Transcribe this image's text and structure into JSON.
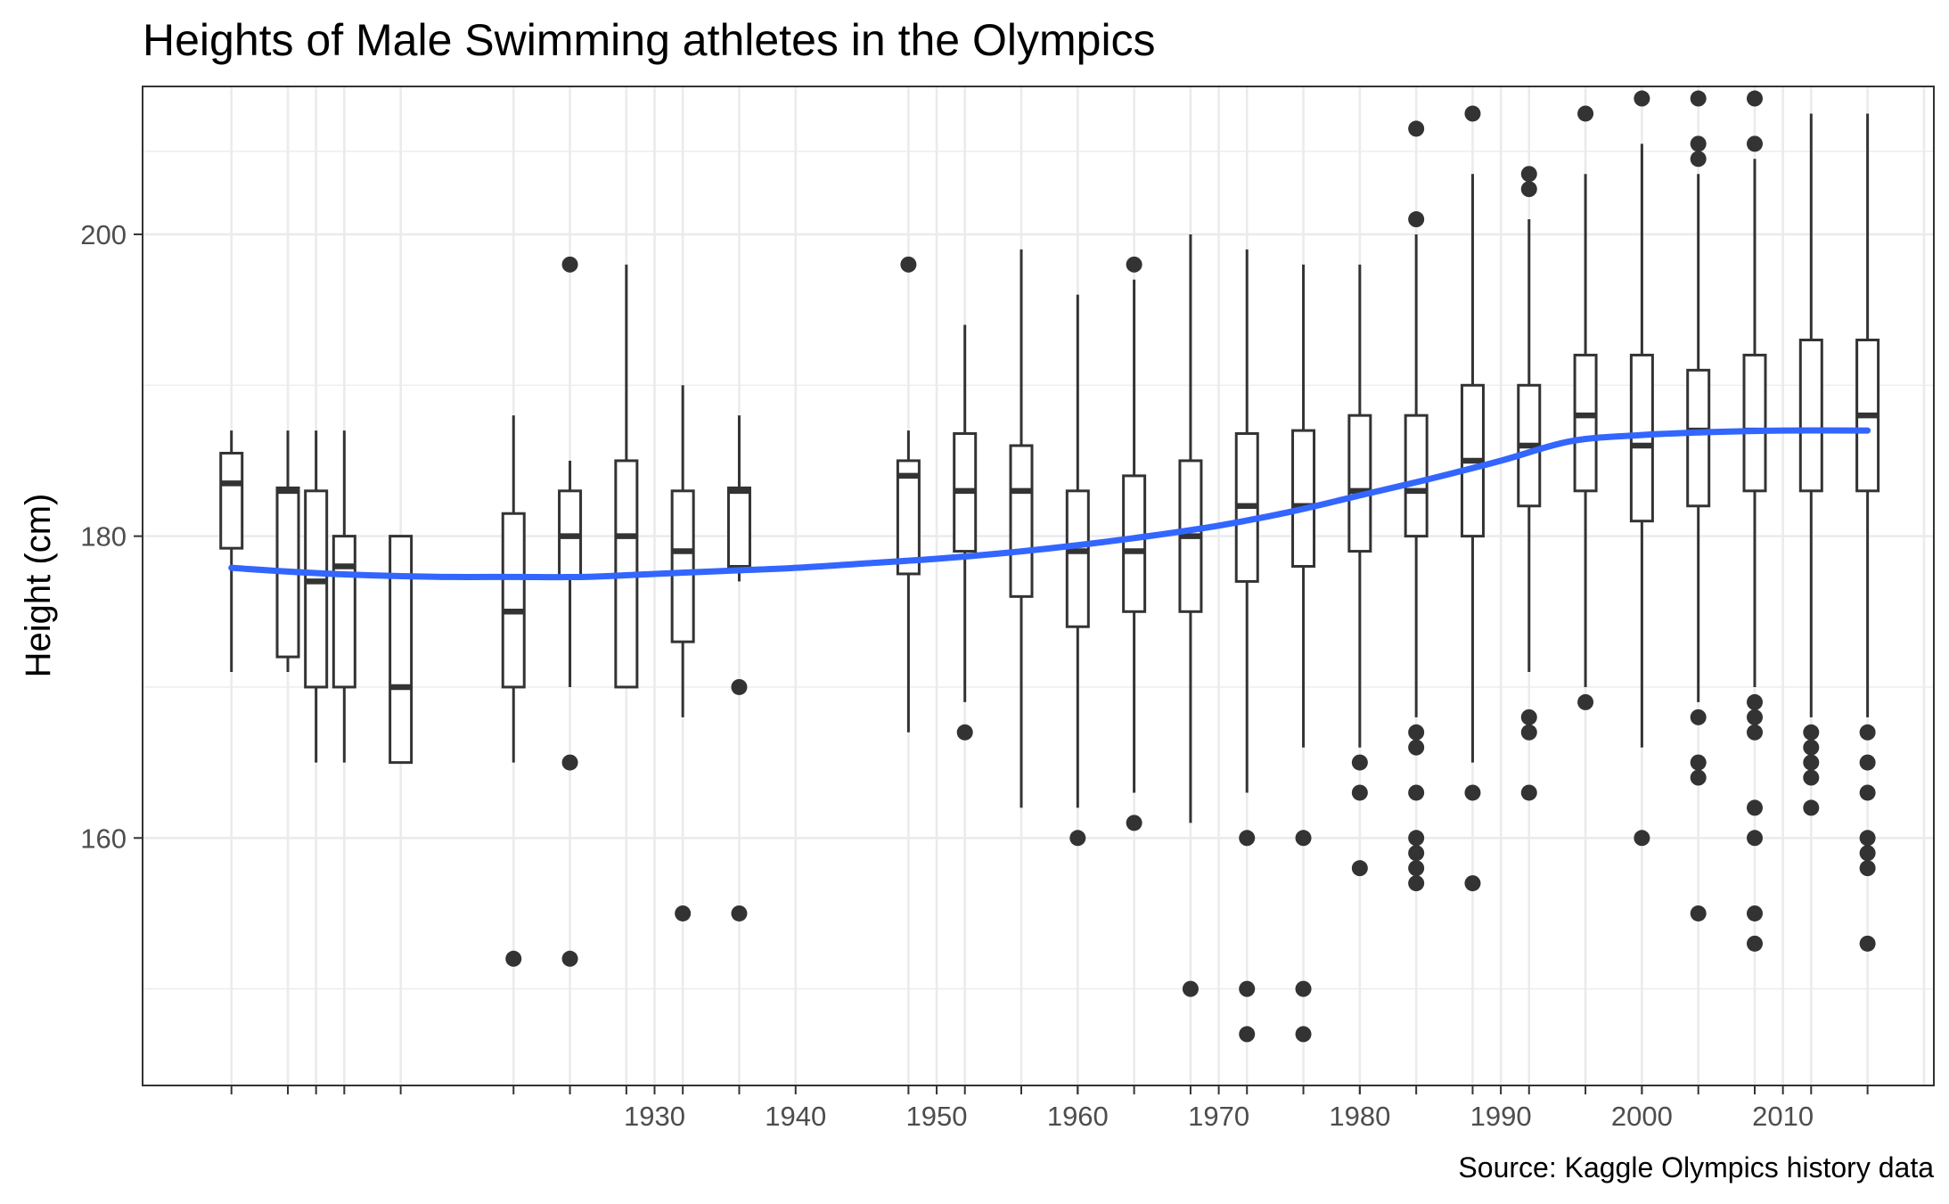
{
  "chart_data": {
    "type": "boxplot",
    "title": "Heights of Male Swimming athletes in the Olympics",
    "xlabel": "",
    "ylabel": "Height (cm)",
    "caption": "Source: Kaggle Olympics history data",
    "xlim": [
      1893.7,
      2020.7
    ],
    "ylim": [
      143.6,
      209.8
    ],
    "x_major_ticks": [
      1930,
      1940,
      1950,
      1960,
      1970,
      1980,
      1990,
      2000,
      2010
    ],
    "x_minor_ticks": [
      1900,
      1904,
      1906,
      1908,
      1912,
      1920,
      1924,
      1928,
      1932,
      1936,
      1948,
      1952,
      1956,
      1960,
      1964,
      1968,
      1972,
      1976,
      1980,
      1984,
      1988,
      1992,
      1996,
      2000,
      2004,
      2008,
      2012,
      2016
    ],
    "x_gridlines": [
      1900,
      1904,
      1906,
      1908,
      1912,
      1920,
      1924,
      1928,
      1930,
      1932,
      1936,
      1940,
      1948,
      1950,
      1952,
      1956,
      1960,
      1964,
      1968,
      1970,
      1972,
      1976,
      1980,
      1984,
      1988,
      1990,
      1992,
      1996,
      2000,
      2004,
      2008,
      2010,
      2012,
      2016,
      2020
    ],
    "y_major_ticks": [
      160,
      180,
      200
    ],
    "y_minor_ticks": [
      150,
      170,
      190
    ],
    "grid": true,
    "boxes": [
      {
        "year": 1900,
        "low": 171,
        "q1": 179.2,
        "median": 183.5,
        "q3": 185.5,
        "high": 187,
        "outliers": []
      },
      {
        "year": 1904,
        "low": 171,
        "q1": 172,
        "median": 183,
        "q3": 183.2,
        "high": 187,
        "outliers": []
      },
      {
        "year": 1906,
        "low": 165,
        "q1": 170,
        "median": 177,
        "q3": 183,
        "high": 187,
        "outliers": []
      },
      {
        "year": 1908,
        "low": 165,
        "q1": 170,
        "median": 178,
        "q3": 180,
        "high": 187,
        "outliers": []
      },
      {
        "year": 1912,
        "low": 165,
        "q1": 165,
        "median": 170,
        "q3": 180,
        "high": 180,
        "outliers": []
      },
      {
        "year": 1920,
        "low": 165,
        "q1": 170,
        "median": 175,
        "q3": 181.5,
        "high": 188,
        "outliers": [
          152
        ]
      },
      {
        "year": 1924,
        "low": 170,
        "q1": 177.3,
        "median": 180,
        "q3": 183,
        "high": 185,
        "outliers": [
          198,
          165,
          152
        ]
      },
      {
        "year": 1928,
        "low": 170,
        "q1": 170,
        "median": 180,
        "q3": 185,
        "high": 198,
        "outliers": []
      },
      {
        "year": 1932,
        "low": 168,
        "q1": 173,
        "median": 179,
        "q3": 183,
        "high": 190,
        "outliers": [
          155
        ]
      },
      {
        "year": 1936,
        "low": 177,
        "q1": 178,
        "median": 183,
        "q3": 183.2,
        "high": 188,
        "outliers": [
          170,
          155
        ]
      },
      {
        "year": 1948,
        "low": 167,
        "q1": 177.5,
        "median": 184,
        "q3": 185,
        "high": 187,
        "outliers": [
          198
        ]
      },
      {
        "year": 1952,
        "low": 169,
        "q1": 179,
        "median": 183,
        "q3": 186.8,
        "high": 194,
        "outliers": [
          167
        ]
      },
      {
        "year": 1956,
        "low": 162,
        "q1": 176,
        "median": 183,
        "q3": 186,
        "high": 199,
        "outliers": []
      },
      {
        "year": 1960,
        "low": 162,
        "q1": 174,
        "median": 179,
        "q3": 183,
        "high": 196,
        "outliers": [
          160
        ]
      },
      {
        "year": 1964,
        "low": 163,
        "q1": 175,
        "median": 179,
        "q3": 184,
        "high": 197,
        "outliers": [
          198,
          161
        ]
      },
      {
        "year": 1968,
        "low": 161,
        "q1": 175,
        "median": 180,
        "q3": 185,
        "high": 200,
        "outliers": [
          150
        ]
      },
      {
        "year": 1972,
        "low": 163,
        "q1": 177,
        "median": 182,
        "q3": 186.8,
        "high": 199,
        "outliers": [
          160,
          150,
          147
        ]
      },
      {
        "year": 1976,
        "low": 166,
        "q1": 178,
        "median": 182,
        "q3": 187,
        "high": 198,
        "outliers": [
          160,
          150,
          147
        ]
      },
      {
        "year": 1980,
        "low": 166,
        "q1": 179,
        "median": 183,
        "q3": 188,
        "high": 198,
        "outliers": [
          165,
          163,
          158
        ]
      },
      {
        "year": 1984,
        "low": 168,
        "q1": 180,
        "median": 183,
        "q3": 188,
        "high": 200,
        "outliers": [
          207,
          201,
          167,
          166,
          163,
          160,
          159,
          158,
          157
        ]
      },
      {
        "year": 1988,
        "low": 165,
        "q1": 180,
        "median": 185,
        "q3": 190,
        "high": 204,
        "outliers": [
          208,
          163,
          157
        ]
      },
      {
        "year": 1992,
        "low": 171,
        "q1": 182,
        "median": 186,
        "q3": 190,
        "high": 201,
        "outliers": [
          204,
          203,
          168,
          167,
          163
        ]
      },
      {
        "year": 1996,
        "low": 170,
        "q1": 183,
        "median": 188,
        "q3": 192,
        "high": 204,
        "outliers": [
          208,
          169
        ]
      },
      {
        "year": 2000,
        "low": 166,
        "q1": 181,
        "median": 186,
        "q3": 192,
        "high": 206,
        "outliers": [
          209,
          160
        ]
      },
      {
        "year": 2004,
        "low": 169,
        "q1": 182,
        "median": 187,
        "q3": 191,
        "high": 204,
        "outliers": [
          209,
          206,
          205,
          168,
          165,
          164,
          155
        ]
      },
      {
        "year": 2008,
        "low": 170,
        "q1": 183,
        "median": 187,
        "q3": 192,
        "high": 205,
        "outliers": [
          209,
          206,
          169,
          168,
          167,
          162,
          160,
          155,
          153
        ]
      },
      {
        "year": 2012,
        "low": 168,
        "q1": 183,
        "median": 187,
        "q3": 193,
        "high": 208,
        "outliers": [
          167,
          166,
          165,
          164,
          162
        ]
      },
      {
        "year": 2016,
        "low": 168,
        "q1": 183,
        "median": 188,
        "q3": 193,
        "high": 208,
        "outliers": [
          167,
          165,
          163,
          160,
          159,
          158,
          153
        ]
      }
    ],
    "smooth": {
      "color": "#3366ff",
      "x": [
        1900,
        1905,
        1910,
        1915,
        1920,
        1925,
        1930,
        1935,
        1940,
        1945,
        1950,
        1955,
        1960,
        1965,
        1970,
        1975,
        1980,
        1985,
        1990,
        1995,
        2000,
        2005,
        2010,
        2016
      ],
      "y": [
        177.9,
        177.6,
        177.4,
        177.3,
        177.3,
        177.3,
        177.5,
        177.7,
        177.9,
        178.2,
        178.5,
        178.9,
        179.4,
        180.0,
        180.7,
        181.6,
        182.7,
        183.8,
        185.0,
        186.3,
        186.7,
        186.9,
        187.0,
        187.0
      ]
    }
  }
}
